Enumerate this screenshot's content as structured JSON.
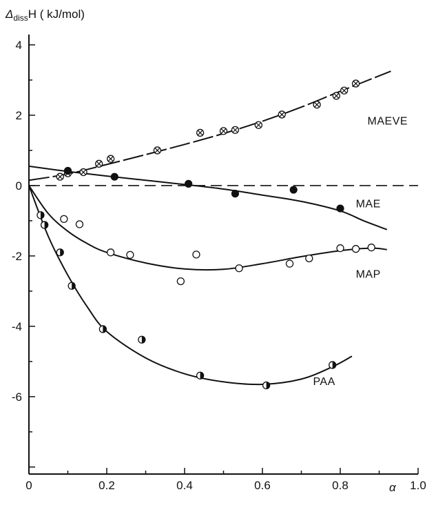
{
  "chart_data": {
    "type": "scatter",
    "ylabel": "Δ_diss H ( kJ/mol)",
    "ylabel_parts": {
      "delta": "Δ",
      "sub": "diss",
      "rest": "H ( kJ/mol)"
    },
    "xlabel": "α",
    "xlim": [
      0,
      1.0
    ],
    "ylim": [
      -8,
      4.5
    ],
    "xticks": [
      {
        "value": 0,
        "label": "0"
      },
      {
        "value": 0.2,
        "label": "0.2"
      },
      {
        "value": 0.4,
        "label": "0.4"
      },
      {
        "value": 0.6,
        "label": "0.6"
      },
      {
        "value": 0.8,
        "label": "0.8"
      },
      {
        "value": 1.0,
        "label": "1.0"
      }
    ],
    "yticks": [
      {
        "value": 4,
        "label": "4"
      },
      {
        "value": 2,
        "label": "2"
      },
      {
        "value": 0,
        "label": "0"
      },
      {
        "value": -2,
        "label": "-2"
      },
      {
        "value": -4,
        "label": "-4"
      },
      {
        "value": -6,
        "label": "-6"
      }
    ],
    "reference_line_y": 0,
    "grid": false,
    "series": [
      {
        "name": "MAEVE",
        "marker": "circle-cross",
        "label_at": [
          0.87,
          1.85
        ],
        "points": [
          [
            0.08,
            0.25
          ],
          [
            0.1,
            0.35
          ],
          [
            0.14,
            0.38
          ],
          [
            0.18,
            0.62
          ],
          [
            0.21,
            0.76
          ],
          [
            0.33,
            1.0
          ],
          [
            0.44,
            1.5
          ],
          [
            0.5,
            1.55
          ],
          [
            0.53,
            1.58
          ],
          [
            0.59,
            1.72
          ],
          [
            0.65,
            2.02
          ],
          [
            0.74,
            2.3
          ],
          [
            0.79,
            2.55
          ],
          [
            0.81,
            2.7
          ],
          [
            0.84,
            2.9
          ]
        ],
        "curve": [
          [
            0,
            0.15
          ],
          [
            0.1,
            0.33
          ],
          [
            0.2,
            0.6
          ],
          [
            0.3,
            0.88
          ],
          [
            0.4,
            1.17
          ],
          [
            0.5,
            1.48
          ],
          [
            0.6,
            1.83
          ],
          [
            0.7,
            2.23
          ],
          [
            0.8,
            2.68
          ],
          [
            0.93,
            3.25
          ]
        ],
        "curve_dashed": true
      },
      {
        "name": "MAE",
        "marker": "filled-circle",
        "label_at": [
          0.84,
          -0.5
        ],
        "points": [
          [
            0.1,
            0.42
          ],
          [
            0.22,
            0.25
          ],
          [
            0.41,
            0.05
          ],
          [
            0.53,
            -0.23
          ],
          [
            0.68,
            -0.12
          ],
          [
            0.8,
            -0.65
          ]
        ],
        "curve": [
          [
            0,
            0.55
          ],
          [
            0.1,
            0.4
          ],
          [
            0.2,
            0.27
          ],
          [
            0.3,
            0.15
          ],
          [
            0.4,
            0.03
          ],
          [
            0.5,
            -0.1
          ],
          [
            0.6,
            -0.27
          ],
          [
            0.7,
            -0.45
          ],
          [
            0.8,
            -0.72
          ],
          [
            0.86,
            -1.0
          ],
          [
            0.92,
            -1.25
          ]
        ],
        "curve_dashed": false
      },
      {
        "name": "MAP",
        "marker": "open-circle",
        "label_at": [
          0.84,
          -2.5
        ],
        "points": [
          [
            0.04,
            -1.12
          ],
          [
            0.09,
            -0.95
          ],
          [
            0.13,
            -1.1
          ],
          [
            0.21,
            -1.9
          ],
          [
            0.26,
            -1.97
          ],
          [
            0.39,
            -2.72
          ],
          [
            0.43,
            -1.96
          ],
          [
            0.54,
            -2.35
          ],
          [
            0.67,
            -2.22
          ],
          [
            0.72,
            -2.07
          ],
          [
            0.8,
            -1.78
          ],
          [
            0.84,
            -1.8
          ],
          [
            0.88,
            -1.76
          ]
        ],
        "curve": [
          [
            0,
            0
          ],
          [
            0.05,
            -0.8
          ],
          [
            0.1,
            -1.3
          ],
          [
            0.15,
            -1.65
          ],
          [
            0.2,
            -1.9
          ],
          [
            0.3,
            -2.2
          ],
          [
            0.4,
            -2.37
          ],
          [
            0.5,
            -2.38
          ],
          [
            0.6,
            -2.22
          ],
          [
            0.7,
            -2.02
          ],
          [
            0.8,
            -1.85
          ],
          [
            0.88,
            -1.78
          ],
          [
            0.92,
            -1.82
          ]
        ],
        "curve_dashed": false
      },
      {
        "name": "PAA",
        "marker": "half-filled-circle",
        "label_at": [
          0.73,
          -5.55
        ],
        "points": [
          [
            0.03,
            -0.84
          ],
          [
            0.04,
            -1.12
          ],
          [
            0.08,
            -1.9
          ],
          [
            0.11,
            -2.85
          ],
          [
            0.19,
            -4.08
          ],
          [
            0.29,
            -4.38
          ],
          [
            0.44,
            -5.4
          ],
          [
            0.61,
            -5.68
          ],
          [
            0.78,
            -5.1
          ]
        ],
        "curve": [
          [
            0,
            0
          ],
          [
            0.05,
            -1.45
          ],
          [
            0.1,
            -2.55
          ],
          [
            0.15,
            -3.45
          ],
          [
            0.2,
            -4.15
          ],
          [
            0.3,
            -4.9
          ],
          [
            0.4,
            -5.35
          ],
          [
            0.5,
            -5.58
          ],
          [
            0.6,
            -5.65
          ],
          [
            0.7,
            -5.5
          ],
          [
            0.78,
            -5.15
          ],
          [
            0.83,
            -4.85
          ]
        ],
        "curve_dashed": false
      }
    ]
  }
}
